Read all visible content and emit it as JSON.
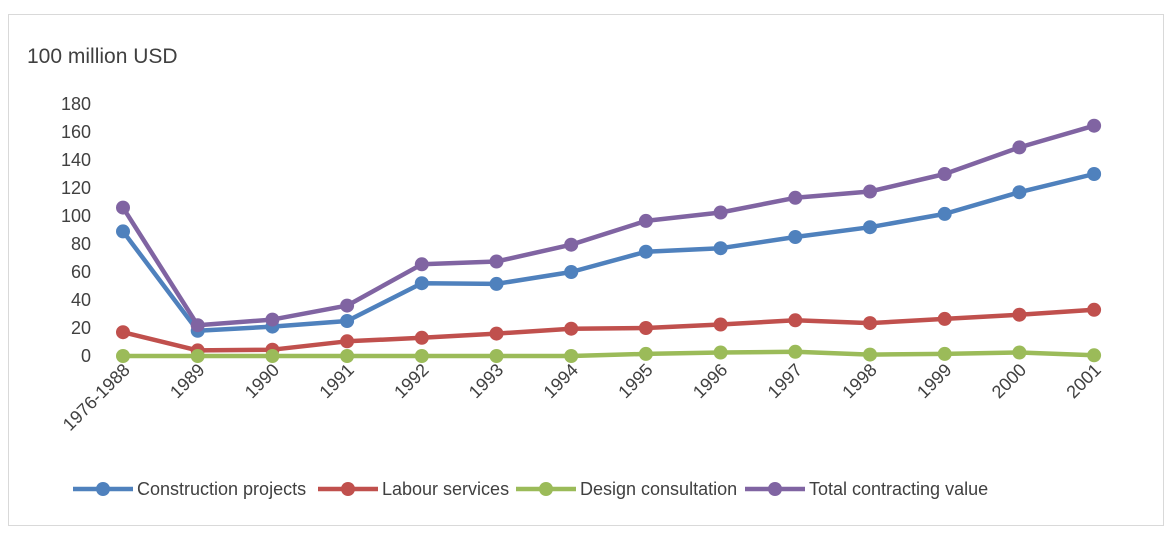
{
  "chart_data": {
    "type": "line",
    "title": "",
    "unit_label": "100 million USD",
    "xlabel": "",
    "ylabel": "",
    "ylim": [
      0,
      180
    ],
    "yticks": [
      0,
      20,
      40,
      60,
      80,
      100,
      120,
      140,
      160,
      180
    ],
    "grid": false,
    "legend_position": "bottom",
    "categories": [
      "1976-1988",
      "1989",
      "1990",
      "1991",
      "1992",
      "1993",
      "1994",
      "1995",
      "1996",
      "1997",
      "1998",
      "1999",
      "2000",
      "2001"
    ],
    "series": [
      {
        "name": "Construction projects",
        "color": "#4f81bd",
        "values": [
          89,
          18,
          21,
          25,
          52,
          51.5,
          60,
          74.5,
          77,
          85,
          92,
          101.5,
          117,
          130
        ]
      },
      {
        "name": "Labour services",
        "color": "#c0504d",
        "values": [
          17,
          4,
          4.5,
          10.5,
          13,
          16,
          19.5,
          20,
          22.5,
          25.5,
          23.5,
          26.5,
          29.5,
          33
        ]
      },
      {
        "name": "Design consultation",
        "color": "#9bbb59",
        "values": [
          0,
          0,
          0,
          0,
          0,
          0,
          0,
          1.5,
          2.5,
          3,
          1,
          1.5,
          2.5,
          0.5
        ]
      },
      {
        "name": "Total contracting value",
        "color": "#8064a2",
        "values": [
          106,
          22,
          26,
          36,
          65.5,
          67.5,
          79.5,
          96.5,
          102.5,
          113,
          117.5,
          130,
          149,
          164.5
        ]
      }
    ]
  }
}
